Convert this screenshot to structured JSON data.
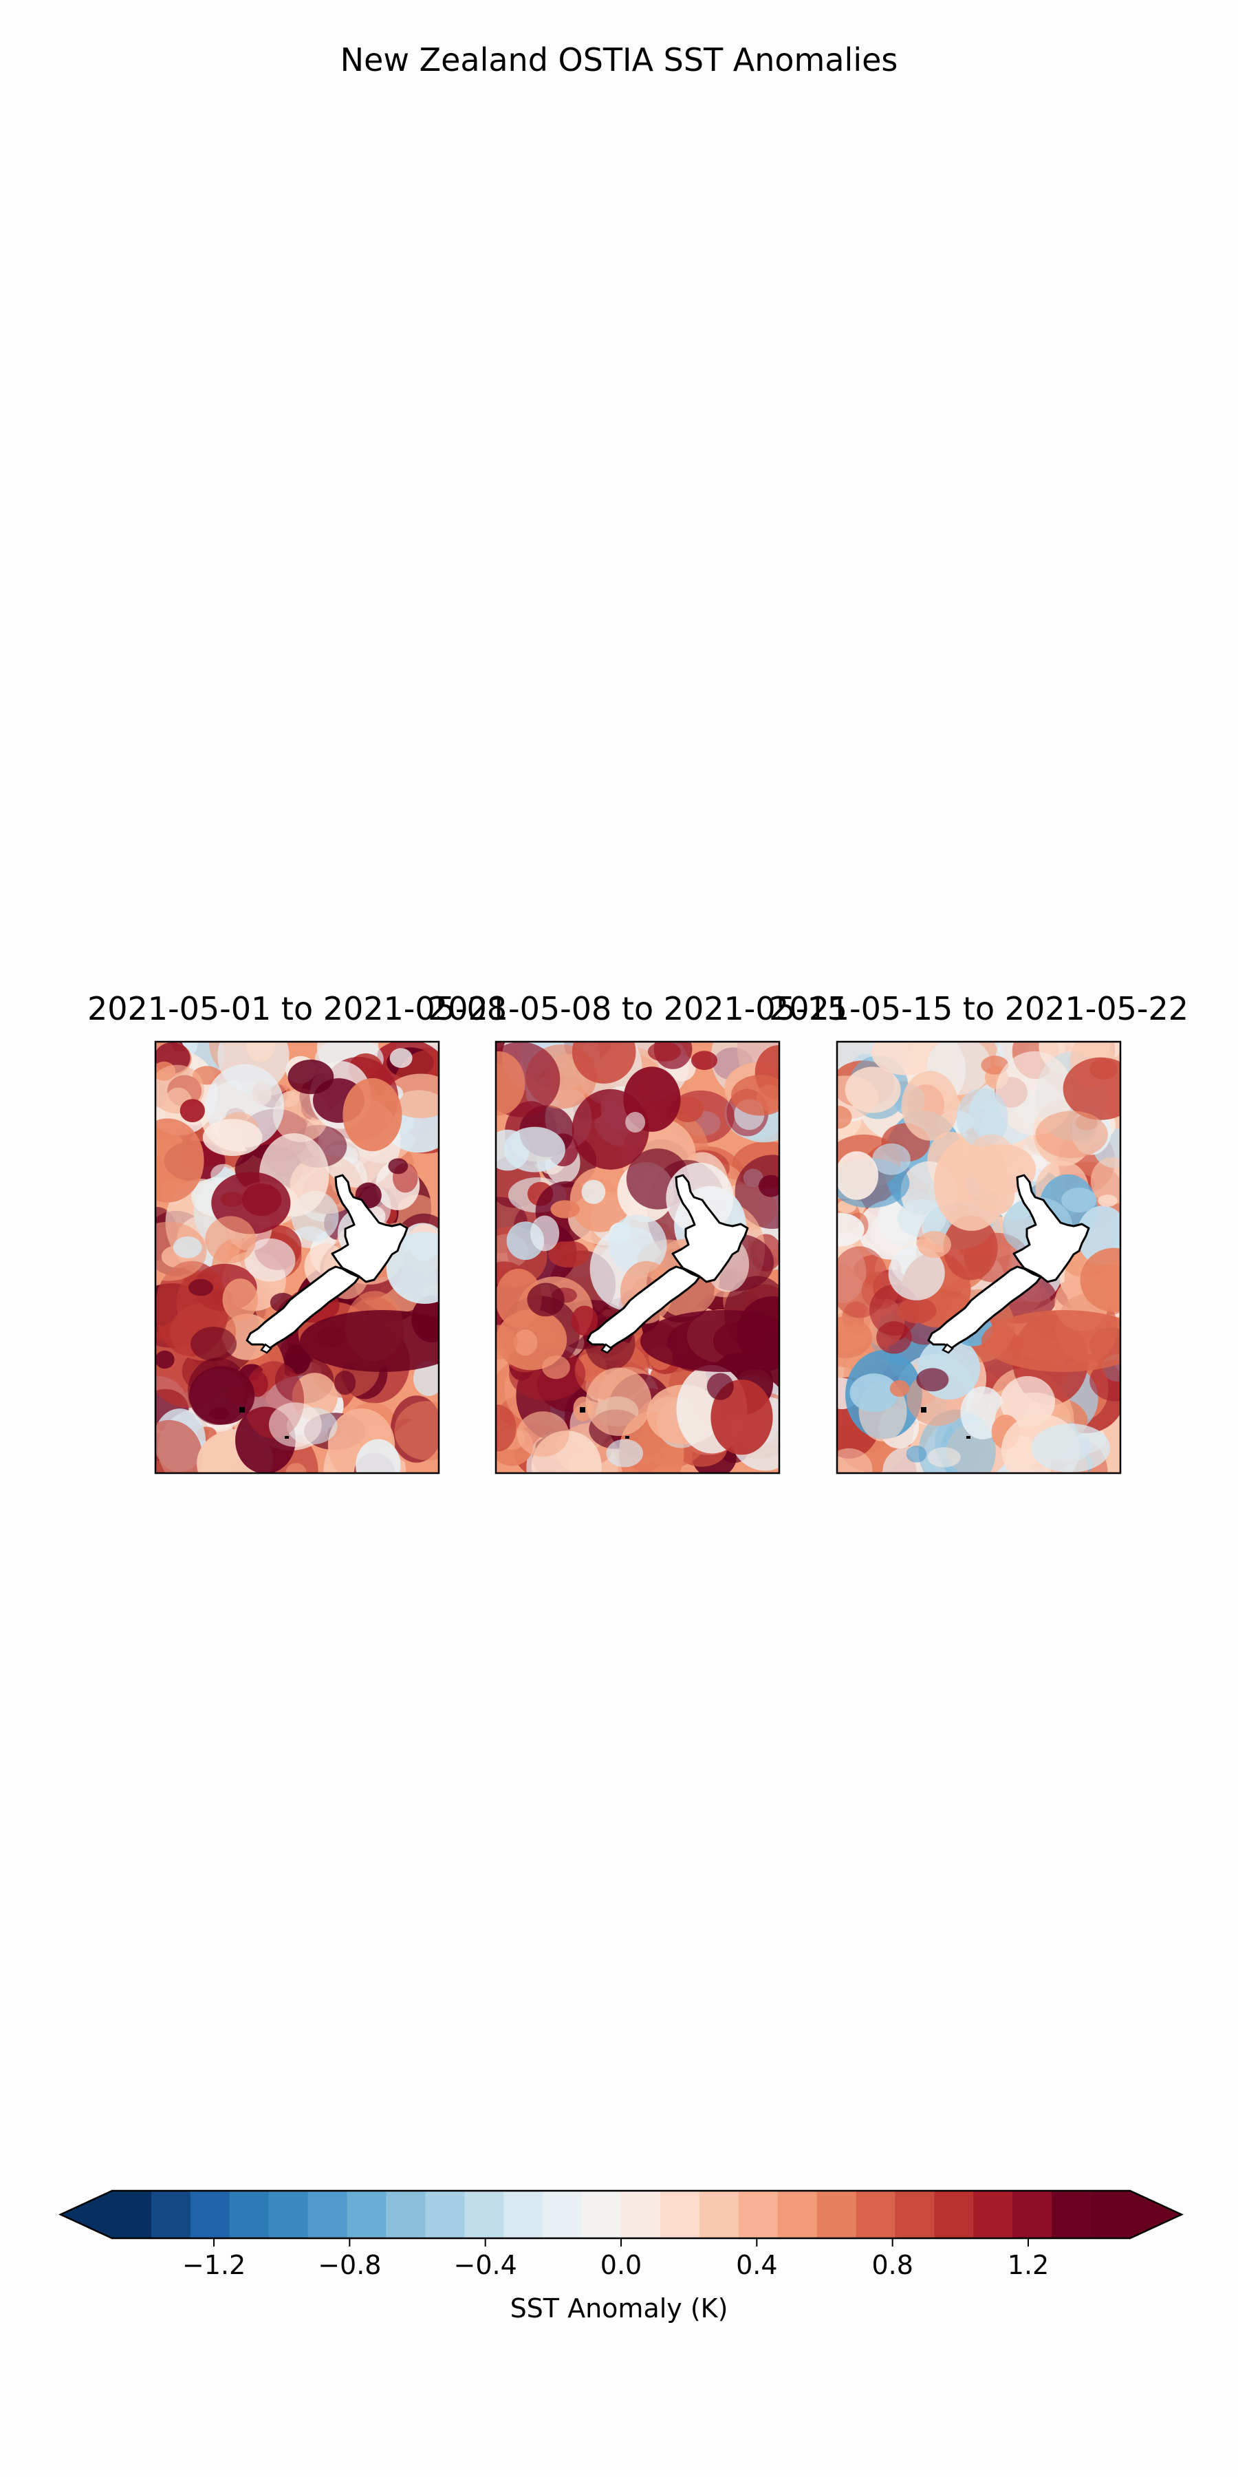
{
  "figure": {
    "title": "New Zealand OSTIA SST Anomalies"
  },
  "panels": [
    {
      "title": "2021-05-01 to 2021-05-08",
      "intensity": 1.0
    },
    {
      "title": "2021-05-08 to 2021-05-15",
      "intensity": 0.95
    },
    {
      "title": "2021-05-15 to 2021-05-22",
      "intensity": 0.55
    }
  ],
  "colorbar": {
    "label": "SST Anomaly (K)",
    "vmin": -1.5,
    "vmax": 1.5,
    "step": 0.1,
    "extend": "both",
    "ticks": [
      -1.2,
      -0.8,
      -0.4,
      0.0,
      0.4,
      0.8,
      1.2
    ],
    "tick_labels": [
      "−1.2",
      "−0.8",
      "−0.4",
      "0.0",
      "0.4",
      "0.8",
      "1.2"
    ],
    "colors": [
      "#053061",
      "#124984",
      "#1f63a8",
      "#2c7bb6",
      "#3a8ac1",
      "#4f9bcb",
      "#6aaed6",
      "#8bc0dd",
      "#a6cfe5",
      "#c1ddec",
      "#d8e9f1",
      "#e8f0f4",
      "#f3f2f1",
      "#f9ebe3",
      "#fbdccb",
      "#f9c8b0",
      "#f6b293",
      "#f19b79",
      "#e7805f",
      "#d9634a",
      "#c94a3d",
      "#b8312f",
      "#a51b28",
      "#8c0d25",
      "#6d0122",
      "#67001f"
    ],
    "under_color": "#053061",
    "over_color": "#67001f"
  },
  "chart_data": {
    "type": "heatmap",
    "title": "New Zealand OSTIA SST Anomalies",
    "panel_titles": [
      "2021-05-01 to 2021-05-08",
      "2021-05-08 to 2021-05-15",
      "2021-05-15 to 2021-05-22"
    ],
    "colorbar_label": "SST Anomaly (K)",
    "value_range": [
      -1.5,
      1.5
    ],
    "colorbar_ticks": [
      -1.2,
      -0.8,
      -0.4,
      0.0,
      0.4,
      0.8,
      1.2
    ]
  }
}
